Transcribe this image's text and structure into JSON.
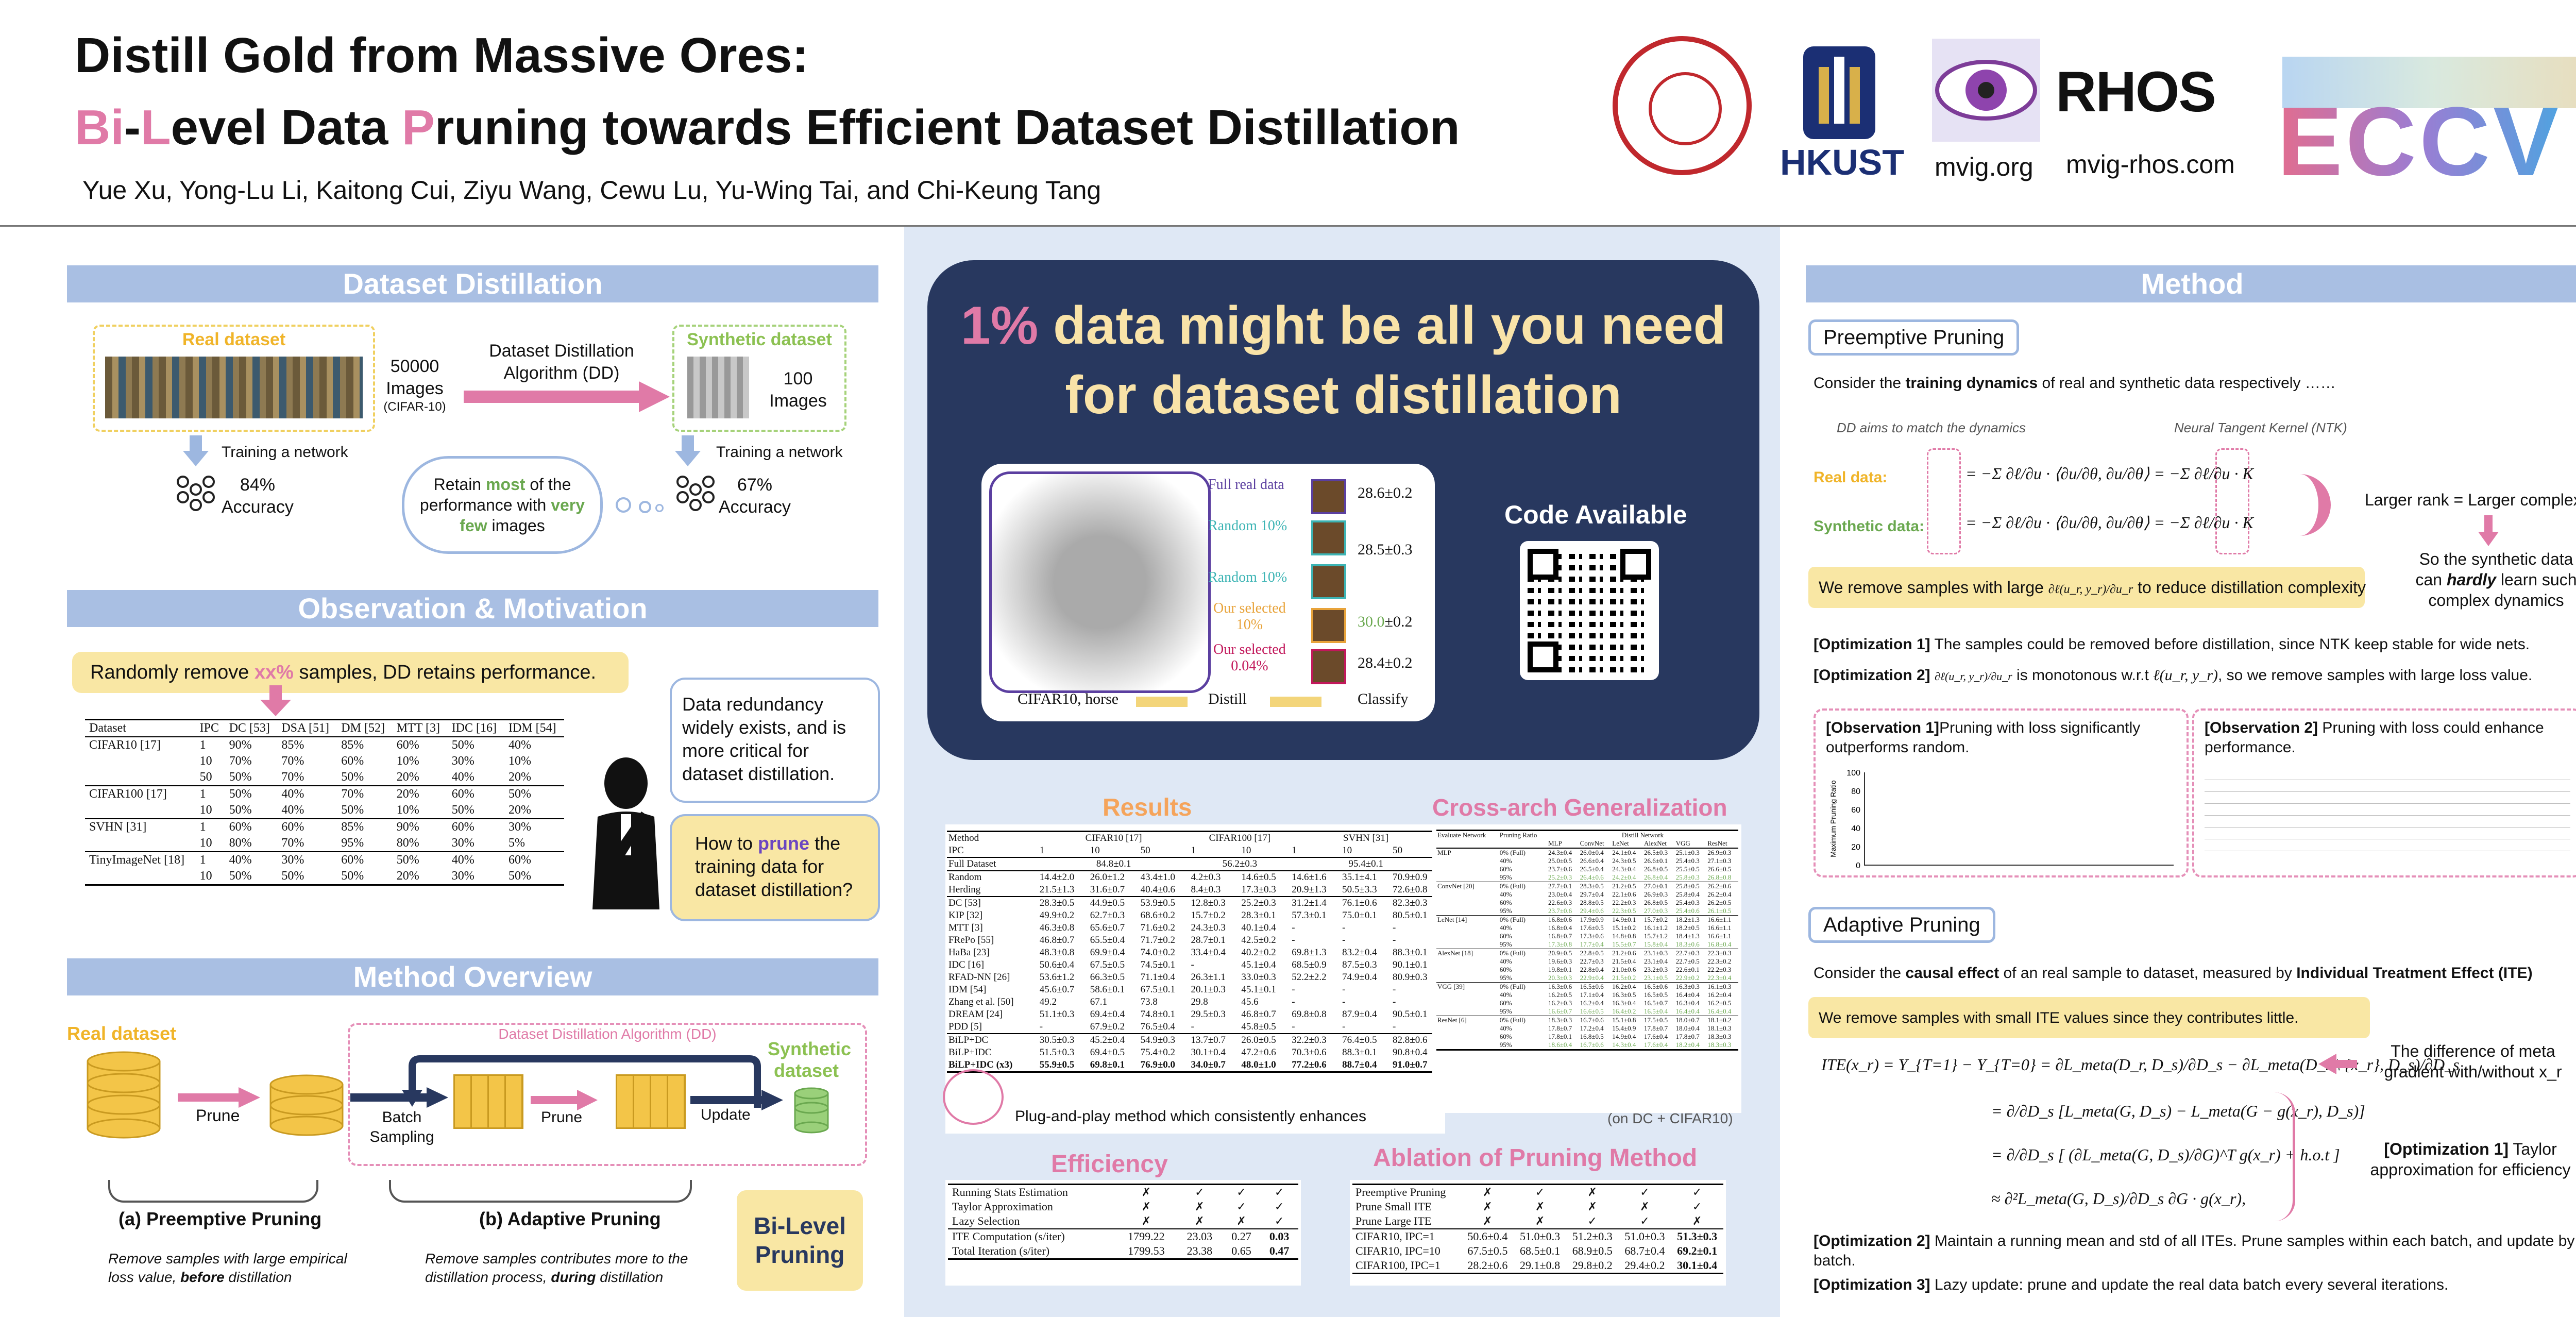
{
  "header": {
    "title_line1": "Distill Gold from Massive Ores:",
    "title_line2_parts": [
      "Bi",
      "-",
      "L",
      "evel Data ",
      "P",
      "runing towards Efficient Dataset Distillation"
    ],
    "authors": "Yue Xu, Yong-Lu Li, Kaitong Cui, Ziyu Wang, Cewu Lu, Yu-Wing Tai, and Chi-Keung Tang",
    "logos": {
      "hkust": "HKUST",
      "mvig": "mvig.org",
      "rhos": "RHOS",
      "rhos_url": "mvig-rhos.com",
      "eccv": "ECCV"
    }
  },
  "left": {
    "dd_title": "Dataset Distillation",
    "real_dataset": "Real dataset",
    "real_count": "50000",
    "real_images": "Images",
    "real_source": "(CIFAR-10)",
    "dd_algo": "Dataset Distillation Algorithm (DD)",
    "synthetic_dataset": "Synthetic dataset",
    "syn_count": "100",
    "syn_images": "Images",
    "train_net_1": "Training a network",
    "train_net_2": "Training a network",
    "acc_real": "84%",
    "acc_real_label": "Accuracy",
    "acc_syn": "67%",
    "acc_syn_label": "Accuracy",
    "cloud_1": "Retain ",
    "cloud_most": "most",
    "cloud_2": " of the performance with ",
    "cloud_very_few": "very few",
    "cloud_3": " images",
    "obs_title": "Observation & Motivation",
    "random_remove_1": "Randomly remove ",
    "random_remove_xx": "xx%",
    "random_remove_2": " samples, DD retains performance.",
    "obs_table": {
      "headers": [
        "Dataset",
        "IPC",
        "DC [53]",
        "DSA [51]",
        "DM [52]",
        "MTT [3]",
        "IDC [16]",
        "IDM [54]"
      ],
      "groups": [
        {
          "name": "CIFAR10 [17]",
          "rows": [
            [
              "1",
              "90%",
              "85%",
              "85%",
              "60%",
              "50%",
              "40%"
            ],
            [
              "10",
              "70%",
              "70%",
              "60%",
              "10%",
              "30%",
              "10%"
            ],
            [
              "50",
              "50%",
              "70%",
              "50%",
              "20%",
              "40%",
              "20%"
            ]
          ]
        },
        {
          "name": "CIFAR100 [17]",
          "rows": [
            [
              "1",
              "50%",
              "40%",
              "70%",
              "20%",
              "60%",
              "50%"
            ],
            [
              "10",
              "50%",
              "40%",
              "50%",
              "10%",
              "50%",
              "20%"
            ]
          ]
        },
        {
          "name": "SVHN [31]",
          "rows": [
            [
              "1",
              "60%",
              "60%",
              "85%",
              "90%",
              "60%",
              "30%"
            ],
            [
              "10",
              "80%",
              "70%",
              "95%",
              "80%",
              "30%",
              "5%"
            ]
          ]
        },
        {
          "name": "TinyImageNet [18]",
          "rows": [
            [
              "1",
              "40%",
              "30%",
              "60%",
              "50%",
              "40%",
              "60%"
            ],
            [
              "10",
              "50%",
              "50%",
              "50%",
              "20%",
              "30%",
              "50%"
            ]
          ]
        }
      ]
    },
    "bubble_redundancy": "Data redundancy widely exists, and is more critical for dataset distillation.",
    "bubble_how_1": "How to ",
    "bubble_how_prune": "prune",
    "bubble_how_2": " the training data for dataset distillation?",
    "overview_title": "Method Overview",
    "ov_real_dataset": "Real dataset",
    "ov_prune_1": "Prune",
    "ov_algo": "Dataset Distillation Algorithm (DD)",
    "ov_batch_sampling": "Batch Sampling",
    "ov_prune_2": "Prune",
    "ov_update": "Update",
    "ov_synthetic": "Synthetic dataset",
    "ov_preemptive": "(a) Preemptive Pruning",
    "ov_adaptive": "(b) Adaptive Pruning",
    "ov_pre_desc_1": "Remove samples with large empirical loss value, ",
    "ov_pre_desc_before": "before",
    "ov_pre_desc_2": " distillation",
    "ov_ada_desc_1": "Remove samples contributes more to the distillation process, ",
    "ov_ada_desc_during": "during",
    "ov_ada_desc_2": " distillation",
    "bilevel": "Bi-Level Pruning"
  },
  "middle": {
    "headline_pct": "1%",
    "headline_rest": " data might be all you need for dataset distillation",
    "fig_labels": {
      "full_real": "Full real data",
      "random10_a": "Random 10%",
      "random10_b": "Random 10%",
      "our_selected_1": "Our selected",
      "our_selected_1_pct": "10%",
      "our_selected_2": "Our selected",
      "our_selected_2_pct": "0.04%",
      "acc_full": "28.6±0.2",
      "acc_random": "28.5±0.3",
      "acc_ours_10": "30.0",
      "acc_ours_10_err": "±0.2",
      "acc_ours_004": "28.4±0.2",
      "caption_left": "CIFAR10, horse",
      "caption_mid": "Distill",
      "caption_right": "Classify"
    },
    "code_available": "Code Available",
    "results_title": "Results",
    "results_caption": "Plug-and-play method which consistently enhances",
    "results_table": {
      "h1": [
        "Method",
        "CIFAR10 [17]",
        "CIFAR100 [17]",
        "SVHN [31]"
      ],
      "h2": [
        "IPC",
        "1",
        "10",
        "50",
        "1",
        "10",
        "1",
        "10",
        "50"
      ],
      "full": [
        "Full Dataset",
        "84.8±0.1",
        "56.2±0.3",
        "95.4±0.1"
      ],
      "baselines": [
        [
          "Random",
          "14.4±2.0",
          "26.0±1.2",
          "43.4±1.0",
          "4.2±0.3",
          "14.6±0.5",
          "14.6±1.6",
          "35.1±4.1",
          "70.9±0.9"
        ],
        [
          "Herding",
          "21.5±1.3",
          "31.6±0.7",
          "40.4±0.6",
          "8.4±0.3",
          "17.3±0.3",
          "20.9±1.3",
          "50.5±3.3",
          "72.6±0.8"
        ]
      ],
      "methods": [
        [
          "DC [53]",
          "28.3±0.5",
          "44.9±0.5",
          "53.9±0.5",
          "12.8±0.3",
          "25.2±0.3",
          "31.2±1.4",
          "76.1±0.6",
          "82.3±0.3"
        ],
        [
          "KIP [32]",
          "49.9±0.2",
          "62.7±0.3",
          "68.6±0.2",
          "15.7±0.2",
          "28.3±0.1",
          "57.3±0.1",
          "75.0±0.1",
          "80.5±0.1"
        ],
        [
          "MTT [3]",
          "46.3±0.8",
          "65.6±0.7",
          "71.6±0.2",
          "24.3±0.3",
          "40.1±0.4",
          "-",
          "-",
          "-"
        ],
        [
          "FRePo [55]",
          "46.8±0.7",
          "65.5±0.4",
          "71.7±0.2",
          "28.7±0.1",
          "42.5±0.2",
          "-",
          "-",
          "-"
        ],
        [
          "HaBa [23]",
          "48.3±0.8",
          "69.9±0.4",
          "74.0±0.2",
          "33.4±0.4",
          "40.2±0.2",
          "69.8±1.3",
          "83.2±0.4",
          "88.3±0.1"
        ],
        [
          "IDC [16]",
          "50.6±0.4",
          "67.5±0.5",
          "74.5±0.1",
          "-",
          "45.1±0.4",
          "68.5±0.9",
          "87.5±0.3",
          "90.1±0.1"
        ],
        [
          "RFAD-NN [26]",
          "53.6±1.2",
          "66.3±0.5",
          "71.1±0.4",
          "26.3±1.1",
          "33.0±0.3",
          "52.2±2.2",
          "74.9±0.4",
          "80.9±0.3"
        ],
        [
          "IDM [54]",
          "45.6±0.7",
          "58.6±0.1",
          "67.5±0.1",
          "20.1±0.3",
          "45.1±0.1",
          "-",
          "-",
          "-"
        ],
        [
          "Zhang et al. [50]",
          "49.2",
          "67.1",
          "73.8",
          "29.8",
          "45.6",
          "-",
          "-",
          "-"
        ],
        [
          "DREAM [24]",
          "51.1±0.3",
          "69.4±0.4",
          "74.8±0.1",
          "29.5±0.3",
          "46.8±0.7",
          "69.8±0.8",
          "87.9±0.4",
          "90.5±0.1"
        ],
        [
          "PDD [5]",
          "-",
          "67.9±0.2",
          "76.5±0.4",
          "-",
          "45.8±0.5",
          "-",
          "-",
          "-"
        ]
      ],
      "ours": [
        [
          "BiLP+DC",
          "30.5±0.3",
          "45.2±0.4",
          "54.9±0.3",
          "13.7±0.7",
          "26.0±0.5",
          "32.2±0.3",
          "76.4±0.5",
          "82.8±0.6"
        ],
        [
          "BiLP+IDC",
          "51.5±0.3",
          "69.4±0.5",
          "75.4±0.2",
          "30.1±0.4",
          "47.2±0.6",
          "70.3±0.6",
          "88.3±0.1",
          "90.8±0.4"
        ],
        [
          "BiLP+IDC (x3)",
          "55.9±0.5",
          "69.8±0.1",
          "76.9±0.0",
          "34.0±0.7",
          "48.0±1.0",
          "77.2±0.6",
          "88.7±0.4",
          "91.0±0.7"
        ]
      ]
    },
    "cross_title": "Cross-arch Generalization",
    "cross_caption": "(on DC + CIFAR10)",
    "cross_table": {
      "h1": [
        "Evaluate Network",
        "Pruning Ratio",
        "Distill Network"
      ],
      "h2": [
        "MLP",
        "ConvNet",
        "LeNet",
        "AlexNet",
        "VGG",
        "ResNet"
      ],
      "blocks": [
        {
          "net": "MLP",
          "rows": [
            [
              "0% (Full)",
              "24.3±0.4",
              "26.0±0.4",
              "24.1±0.4",
              "26.5±0.3",
              "25.1±0.3",
              "26.9±0.3"
            ],
            [
              "40%",
              "25.0±0.5",
              "26.6±0.4",
              "24.3±0.5",
              "26.6±0.1",
              "25.4±0.3",
              "27.1±0.3"
            ],
            [
              "60%",
              "23.7±0.6",
              "26.5±0.4",
              "24.3±0.4",
              "26.8±0.5",
              "25.5±0.5",
              "26.6±0.5"
            ],
            [
              "95%",
              "25.2±0.3",
              "26.4±0.6",
              "24.2±0.4",
              "26.8±0.4",
              "25.8±0.3",
              "26.8±0.8"
            ]
          ]
        },
        {
          "net": "ConvNet [20]",
          "rows": [
            [
              "0% (Full)",
              "27.7±0.1",
              "28.3±0.5",
              "21.2±0.5",
              "27.0±0.1",
              "25.8±0.5",
              "26.2±0.6"
            ],
            [
              "40%",
              "23.0±0.4",
              "29.7±0.4",
              "22.1±0.6",
              "26.9±0.3",
              "25.8±0.4",
              "26.2±0.4"
            ],
            [
              "60%",
              "22.6±0.3",
              "28.8±0.5",
              "22.2±0.3",
              "26.8±0.5",
              "25.4±0.3",
              "26.2±0.5"
            ],
            [
              "95%",
              "23.7±0.6",
              "29.4±0.6",
              "22.3±0.5",
              "27.0±0.3",
              "25.4±0.6",
              "26.1±0.5"
            ]
          ]
        },
        {
          "net": "LeNet [14]",
          "rows": [
            [
              "0% (Full)",
              "16.8±0.6",
              "17.9±0.9",
              "14.9±0.1",
              "15.7±0.2",
              "18.2±1.3",
              "16.6±1.1"
            ],
            [
              "40%",
              "16.8±0.4",
              "17.6±0.5",
              "15.1±0.2",
              "16.1±1.2",
              "18.2±0.5",
              "16.6±1.1"
            ],
            [
              "60%",
              "16.8±0.7",
              "17.3±0.6",
              "14.8±0.8",
              "15.7±1.2",
              "18.4±1.3",
              "16.6±1.1"
            ],
            [
              "95%",
              "17.3±0.8",
              "17.7±0.4",
              "15.5±0.7",
              "15.8±0.4",
              "18.3±0.6",
              "16.8±0.4"
            ]
          ]
        },
        {
          "net": "AlexNet [18]",
          "rows": [
            [
              "0% (Full)",
              "20.9±0.5",
              "22.8±0.5",
              "21.2±0.6",
              "23.1±0.3",
              "22.7±0.3",
              "22.3±0.3"
            ],
            [
              "40%",
              "19.6±0.3",
              "22.7±0.3",
              "21.5±0.4",
              "23.1±0.4",
              "22.7±0.5",
              "22.3±0.2"
            ],
            [
              "60%",
              "19.8±0.1",
              "22.8±0.4",
              "21.0±0.6",
              "23.2±0.3",
              "22.6±0.1",
              "22.2±0.3"
            ],
            [
              "95%",
              "20.3±0.3",
              "22.9±0.4",
              "21.5±0.2",
              "23.1±0.5",
              "22.9±0.2",
              "22.3±0.4"
            ]
          ]
        },
        {
          "net": "VGG [39]",
          "rows": [
            [
              "0% (Full)",
              "16.3±0.6",
              "16.5±0.6",
              "16.2±0.4",
              "16.5±0.6",
              "16.3±0.3",
              "16.1±0.3"
            ],
            [
              "40%",
              "16.2±0.5",
              "17.1±0.4",
              "16.3±0.5",
              "16.5±0.5",
              "16.4±0.4",
              "16.2±0.4"
            ],
            [
              "60%",
              "16.2±0.3",
              "16.2±0.4",
              "16.3±0.4",
              "16.5±0.7",
              "16.3±0.4",
              "16.2±0.5"
            ],
            [
              "95%",
              "16.6±0.7",
              "16.6±0.5",
              "16.4±0.2",
              "16.5±0.4",
              "16.4±0.4",
              "16.4±0.4"
            ]
          ]
        },
        {
          "net": "ResNet [6]",
          "rows": [
            [
              "0% (Full)",
              "18.3±0.3",
              "16.7±0.6",
              "15.1±0.8",
              "17.5±0.5",
              "18.0±0.7",
              "18.1±0.2"
            ],
            [
              "40%",
              "17.8±0.7",
              "17.2±0.4",
              "15.4±0.9",
              "17.8±0.7",
              "18.0±0.4",
              "18.1±0.3"
            ],
            [
              "60%",
              "17.8±0.1",
              "16.8±0.5",
              "14.9±0.4",
              "17.6±0.4",
              "17.8±0.7",
              "18.3±0.3"
            ],
            [
              "95%",
              "18.6±0.4",
              "16.7±0.6",
              "14.3±0.4",
              "17.6±0.4",
              "18.2±0.4",
              "18.3±0.3"
            ]
          ]
        }
      ]
    },
    "eff_title": "Efficiency",
    "eff_table": {
      "rows_check": [
        [
          "Running Stats Estimation",
          "✗",
          "✓",
          "✓",
          "✓"
        ],
        [
          "Taylor Approximation",
          "✗",
          "✗",
          "✓",
          "✓"
        ],
        [
          "Lazy Selection",
          "✗",
          "✗",
          "✗",
          "✓"
        ]
      ],
      "rows_val": [
        [
          "ITE Computation (s/iter)",
          "1799.22",
          "23.03",
          "0.27",
          "0.03"
        ],
        [
          "Total Iteration (s/iter)",
          "1799.53",
          "23.38",
          "0.65",
          "0.47"
        ]
      ]
    },
    "abl_title": "Ablation of Pruning Method",
    "abl_table": {
      "rows_check": [
        [
          "Preemptive Pruning",
          "✗",
          "✓",
          "✗",
          "✓",
          "✓"
        ],
        [
          "Prune Small ITE",
          "✗",
          "✗",
          "✗",
          "✗",
          "✓"
        ],
        [
          "Prune Large ITE",
          "✗",
          "✗",
          "✓",
          "✓",
          "✗"
        ]
      ],
      "rows_val": [
        [
          "CIFAR10, IPC=1",
          "50.6±0.4",
          "51.0±0.3",
          "51.2±0.3",
          "51.0±0.3",
          "51.3±0.3"
        ],
        [
          "CIFAR10, IPC=10",
          "67.5±0.5",
          "68.5±0.1",
          "68.9±0.5",
          "68.7±0.4",
          "69.2±0.1"
        ],
        [
          "CIFAR100, IPC=1",
          "28.2±0.6",
          "29.1±0.8",
          "29.8±0.2",
          "29.4±0.2",
          "30.1±0.4"
        ]
      ]
    }
  },
  "right": {
    "method_title": "Method",
    "preemptive_title": "Preemptive Pruning",
    "consider_1": "Consider the ",
    "consider_bold": "training dynamics",
    "consider_2": " of real and synthetic data respectively ……",
    "dd_aims": "DD aims to match the dynamics",
    "ntk": "Neural Tangent Kernel (NTK)",
    "real_data": "Real data:",
    "synthetic_data": "Synthetic data:",
    "larger_rank": "Larger rank = Larger complexity",
    "so_syn_1": "So the synthetic data can ",
    "so_syn_hardly": "hardly",
    "so_syn_2": " learn such complex dynamics",
    "remove_large_1": "We remove samples with large ",
    "remove_large_frac": "∂ℓ(u_r, y_r)/∂u_r",
    "remove_large_2": " to reduce distillation complexity",
    "opt1_label": "[Optimization 1]",
    "opt1_text": " The samples could be removed before distillation, since NTK keep stable for wide nets.",
    "opt2_label": "[Optimization 2]",
    "opt2_frac": "∂ℓ(u_r, y_r)/∂u_r",
    "opt2_text_1": " is monotonous w.r.t ",
    "opt2_term": "ℓ(u_r, y_r)",
    "opt2_text_2": ", so we remove samples with large loss value.",
    "obs1_label": "[Observation 1]",
    "obs1_text": "Pruning with loss significantly outperforms random.",
    "obs1_ylabel": "Maximum Pruning Ratio",
    "obs1_yticks": [
      "100",
      "80",
      "60",
      "40",
      "20",
      "0"
    ],
    "obs2_label": "[Observation 2]",
    "obs2_text": " Pruning with loss could enhance performance.",
    "adaptive_title": "Adaptive Pruning",
    "causal_1": "Consider the ",
    "causal_bold": "causal effect",
    "causal_2": " of an real sample to dataset, measured by ",
    "causal_bold2": "Individual Treatment Effect (ITE)",
    "remove_small": "We remove samples with small ITE values since they contributes little.",
    "ite_eq1": "ITE(x_r) = Y_{T=1} − Y_{T=0} = ∂L_meta(D_r, D_s)/∂D_s − ∂L_meta(D_r \\ {x_r}, D_s)/∂D_s",
    "ite_eq2": "= ∂/∂D_s [L_meta(G, D_s) − L_meta(G − g(x_r), D_s)]",
    "ite_eq3": "= ∂/∂D_s [ (∂L_meta(G, D_s)/∂G)^T g(x_r) + h.o.t ]",
    "ite_eq4": "≈ ∂²L_meta(G, D_s)/∂D_s ∂G · g(x_r),",
    "meta_diff": "The difference of meta gradient with/without x_r",
    "opt1b_label": "[Optimization 1]",
    "opt1b_text": " Taylor approximation for efficiency",
    "opt2b_label": "[Optimization 2]",
    "opt2b_text": " Maintain a running mean and std of all ITEs. Prune samples within each batch, and update by batch.",
    "opt3b_label": "[Optimization 3]",
    "opt3b_text": " Lazy update: prune and update the real data batch every several iterations."
  },
  "colors": {
    "section_header": "#a9bfe3",
    "pink": "#e07aa7",
    "orange": "#f5a45b",
    "navy": "#28385f",
    "yellow_box": "#f9e7a4",
    "green": "#6aa84f"
  }
}
